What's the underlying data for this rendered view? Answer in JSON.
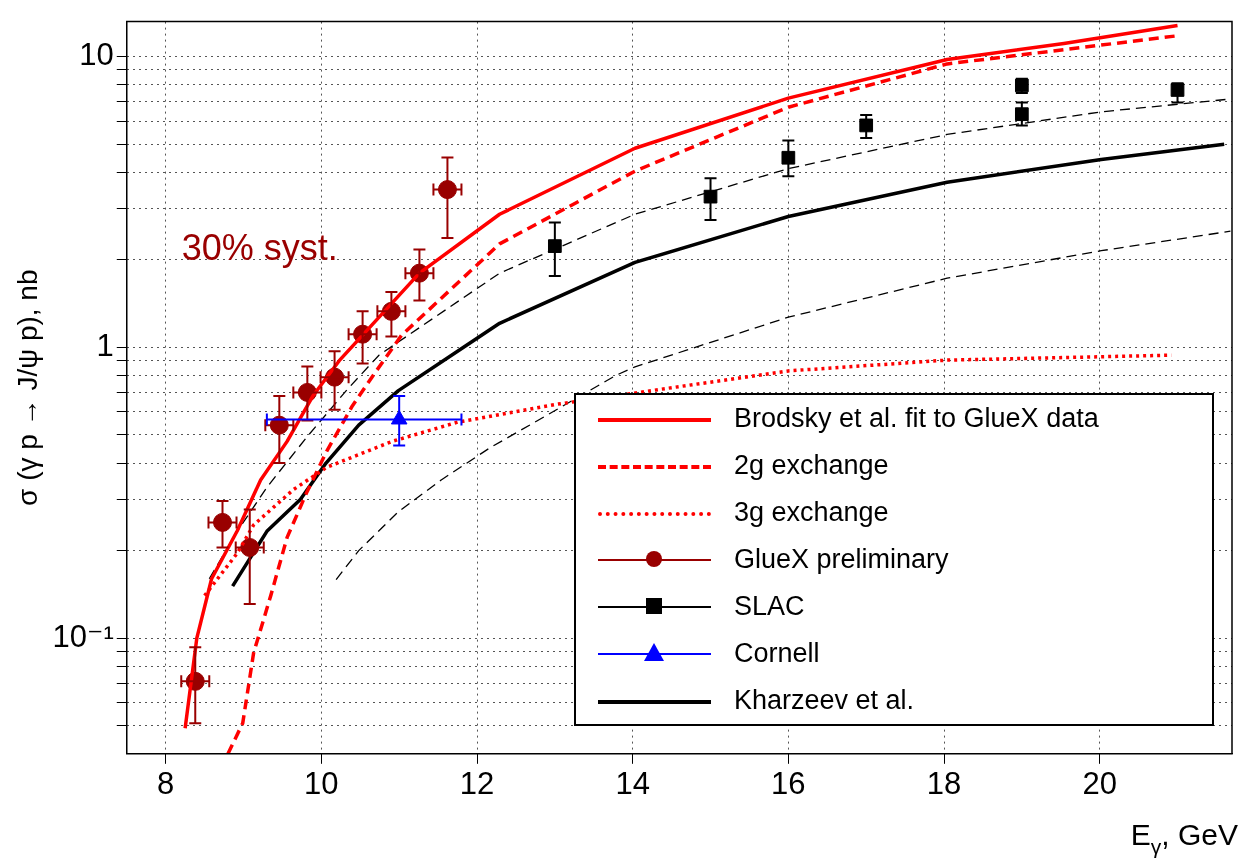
{
  "chart_data": {
    "type": "scatter",
    "xlabel": "E$_{γ}$, GeV",
    "ylabel": "σ (γ p → J/ψ p), nb",
    "log": "y",
    "grid": true,
    "legend": "bottom right",
    "xlim": [
      7.5,
      21.7
    ],
    "ylim": [
      0.04,
      13.2
    ],
    "xticks": [
      8,
      10,
      12,
      14,
      16,
      18,
      20
    ],
    "yticks": [
      {
        "value": 0.05,
        "label": null
      },
      {
        "value": 0.06,
        "label": null
      },
      {
        "value": 0.07,
        "label": null
      },
      {
        "value": 0.08,
        "label": null
      },
      {
        "value": 0.09,
        "label": null
      },
      {
        "value": 0.1,
        "label": "10⁻¹"
      },
      {
        "value": 0.2,
        "label": null
      },
      {
        "value": 0.3,
        "label": null
      },
      {
        "value": 0.4,
        "label": null
      },
      {
        "value": 0.5,
        "label": null
      },
      {
        "value": 0.6,
        "label": null
      },
      {
        "value": 0.7,
        "label": null
      },
      {
        "value": 0.8,
        "label": null
      },
      {
        "value": 0.9,
        "label": null
      },
      1,
      {
        "value": 2,
        "label": null
      },
      {
        "value": 3,
        "label": null
      },
      {
        "value": 4,
        "label": null
      },
      {
        "value": 5,
        "label": null
      },
      {
        "value": 6,
        "label": null
      },
      {
        "value": 7,
        "label": null
      },
      {
        "value": 8,
        "label": null
      },
      {
        "value": 9,
        "label": null
      },
      10
    ],
    "annotations": [
      "30% syst."
    ],
    "series": [
      {
        "name": "Brodsky et al. fit to GlueX data",
        "type": "line",
        "color": "#ff0000",
        "line_style": "solid",
        "marker": "none",
        "x": [
          8.25,
          8.4,
          8.59,
          8.92,
          9.22,
          9.56,
          9.89,
          10.23,
          11.26,
          12.29,
          14.03,
          16.0,
          18.04,
          19.54,
          21.0
        ],
        "values": [
          0.049,
          0.1,
          0.16,
          0.234,
          0.35,
          0.475,
          0.68,
          0.9,
          1.8,
          2.87,
          4.84,
          7.2,
          9.78,
          11.1,
          12.8
        ]
      },
      {
        "name": "2g exchange",
        "type": "line",
        "color": "#ff0000",
        "line_style": "dashed",
        "marker": "none",
        "x": [
          8.8,
          8.99,
          9.13,
          9.35,
          9.56,
          9.81,
          10.07,
          10.4,
          10.65,
          11.03,
          12.29,
          14.03,
          16.0,
          18.04,
          21.0
        ],
        "values": [
          0.04,
          0.051,
          0.089,
          0.14,
          0.222,
          0.316,
          0.44,
          0.63,
          0.79,
          1.1,
          2.27,
          4.04,
          6.7,
          9.44,
          11.8
        ]
      },
      {
        "name": "3g exchange",
        "type": "line",
        "color": "#ff0000",
        "line_style": "dotted",
        "marker": "none",
        "x": [
          8.5,
          8.92,
          9.13,
          9.64,
          10.07,
          10.91,
          11.75,
          13.02,
          16.0,
          18.04,
          20.92
        ],
        "values": [
          0.14,
          0.196,
          0.245,
          0.324,
          0.387,
          0.475,
          0.553,
          0.637,
          0.83,
          0.904,
          0.94
        ]
      },
      {
        "name": "GlueX preliminary",
        "type": "scatter",
        "color": "#990000",
        "marker": "circle",
        "x": [
          8.38,
          8.73,
          9.08,
          9.46,
          9.82,
          10.17,
          10.53,
          10.9,
          11.26,
          11.62
        ],
        "values": [
          0.071,
          0.25,
          0.205,
          0.54,
          0.7,
          0.79,
          1.11,
          1.33,
          1.8,
          3.49
        ],
        "errors": [
          [
            0.051,
            0.093
          ],
          [
            0.205,
            0.296
          ],
          [
            0.131,
            0.277
          ],
          [
            0.4,
            0.68
          ],
          [
            0.56,
            0.86
          ],
          [
            0.61,
            0.97
          ],
          [
            0.88,
            1.33
          ],
          [
            1.09,
            1.55
          ],
          [
            1.45,
            2.17
          ],
          [
            2.38,
            4.5
          ]
        ],
        "xerrors": [
          0.18,
          0.18,
          0.18,
          0.18,
          0.18,
          0.18,
          0.18,
          0.18,
          0.18,
          0.18
        ]
      },
      {
        "name": "SLAC",
        "type": "scatter",
        "color": "#000000",
        "marker": "square",
        "x": [
          13,
          15,
          16,
          17,
          19,
          19,
          21
        ],
        "values": [
          2.23,
          3.3,
          4.49,
          5.8,
          7.96,
          6.34,
          7.68
        ],
        "errors": [
          [
            1.76,
            2.69
          ],
          [
            2.74,
            3.82
          ],
          [
            3.88,
            5.15
          ],
          [
            5.25,
            6.3
          ],
          [
            7.5,
            8.4
          ],
          [
            5.8,
            6.95
          ],
          [
            6.95,
            8.1
          ]
        ]
      },
      {
        "name": "Cornell",
        "type": "scatter",
        "color": "#0000ff",
        "marker": "triangle",
        "x": [
          11
        ],
        "values": [
          0.565
        ],
        "errors": [
          [
            0.46,
            0.68
          ]
        ],
        "xerrors": [
          [
            9.3,
            11.8
          ]
        ]
      },
      {
        "name": "Kharzeev et al.",
        "type": "line",
        "color": "#000000",
        "line_style": "solid",
        "marker": "none",
        "x": [
          8.86,
          9.3,
          9.73,
          10.06,
          10.48,
          10.99,
          11.75,
          12.29,
          14.03,
          16.0,
          18.04,
          20.02,
          21.6
        ],
        "values": [
          0.151,
          0.233,
          0.3,
          0.4,
          0.54,
          0.71,
          0.97,
          1.21,
          1.96,
          2.82,
          3.7,
          4.43,
          5.0
        ]
      },
      {
        "type": "line",
        "color": "#000000",
        "line_style": "dashed",
        "marker": "none",
        "x": [
          8.56,
          8.63,
          8.92,
          9.3,
          9.81,
          10.32,
          10.74,
          12.29,
          14.03,
          16.0,
          18.04,
          20.02,
          21.68
        ],
        "values": [
          0.16,
          0.172,
          0.233,
          0.33,
          0.49,
          0.71,
          0.94,
          1.8,
          2.87,
          4.12,
          5.4,
          6.46,
          7.15
        ]
      },
      {
        "type": "line",
        "color": "#000000",
        "line_style": "dashed",
        "marker": "none",
        "x": [
          10.19,
          10.48,
          10.99,
          11.54,
          12.17,
          13.02,
          13.78,
          14.03,
          16.0,
          18.04,
          20.02,
          21.68
        ],
        "values": [
          0.159,
          0.2,
          0.272,
          0.35,
          0.452,
          0.61,
          0.8,
          0.857,
          1.27,
          1.73,
          2.15,
          2.51
        ]
      }
    ]
  }
}
